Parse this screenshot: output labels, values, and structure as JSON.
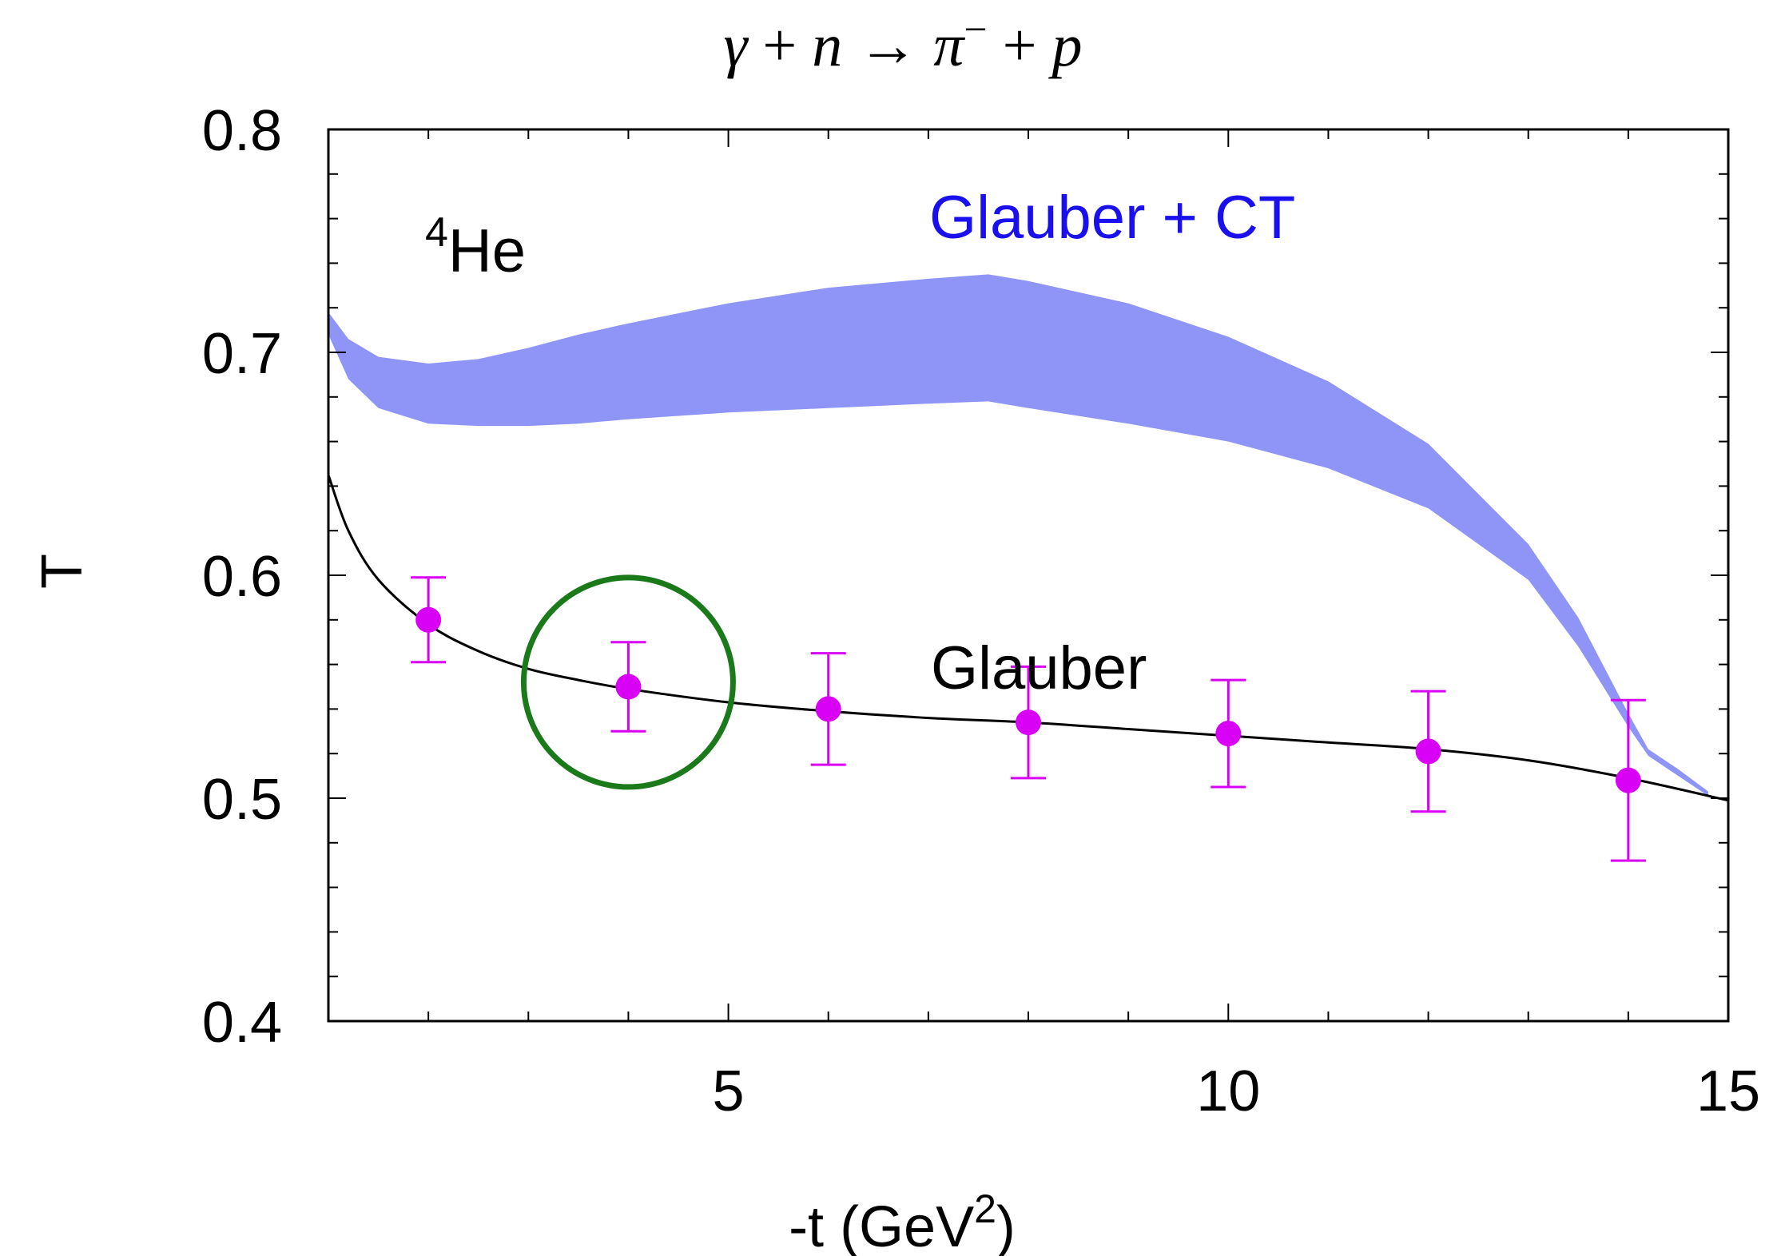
{
  "chart_data": {
    "type": "line",
    "title": {
      "parts": [
        "γ",
        " + ",
        "n",
        " → ",
        "π",
        "−",
        " + ",
        "p"
      ]
    },
    "xlabel": {
      "main": "-t (GeV",
      "sup": "2",
      "end": ")"
    },
    "ylabel": "T",
    "xlim": [
      1,
      15
    ],
    "ylim": [
      0.4,
      0.8
    ],
    "x_ticks": [
      5,
      10,
      15
    ],
    "x_tick_labels": [
      "5",
      "10",
      "15"
    ],
    "y_ticks": [
      0.4,
      0.5,
      0.6,
      0.7,
      0.8
    ],
    "y_tick_labels": [
      "0.4",
      "0.5",
      "0.6",
      "0.7",
      "0.8"
    ],
    "grid": false,
    "annotations": {
      "nucleus": {
        "sup": "4",
        "text": "He"
      },
      "band_label": "Glauber + CT",
      "curve_label": "Glauber"
    },
    "series": [
      {
        "name": "Glauber",
        "kind": "line",
        "color": "#000000",
        "x": [
          1.0,
          1.2,
          1.5,
          2.0,
          2.5,
          3.0,
          3.5,
          4.0,
          5.0,
          6.0,
          7.0,
          8.0,
          9.0,
          10.0,
          11.0,
          12.0,
          13.0,
          14.0,
          15.0
        ],
        "y": [
          0.645,
          0.62,
          0.598,
          0.578,
          0.566,
          0.558,
          0.553,
          0.549,
          0.543,
          0.539,
          0.536,
          0.534,
          0.531,
          0.528,
          0.525,
          0.522,
          0.517,
          0.509,
          0.499
        ]
      },
      {
        "name": "Glauber + CT",
        "kind": "band",
        "color": "#8f94f7",
        "x": [
          1.0,
          1.2,
          1.5,
          2.0,
          2.5,
          3.0,
          3.5,
          4.0,
          5.0,
          6.0,
          7.0,
          7.6,
          8.0,
          9.0,
          10.0,
          11.0,
          12.0,
          13.0,
          13.5,
          14.0,
          14.2,
          14.5,
          14.8
        ],
        "y_upper": [
          0.718,
          0.706,
          0.698,
          0.695,
          0.697,
          0.702,
          0.708,
          0.713,
          0.722,
          0.729,
          0.733,
          0.735,
          0.732,
          0.722,
          0.707,
          0.687,
          0.659,
          0.614,
          0.581,
          0.538,
          0.522,
          0.513,
          0.503
        ],
        "y_lower": [
          0.708,
          0.688,
          0.675,
          0.668,
          0.667,
          0.667,
          0.668,
          0.67,
          0.673,
          0.675,
          0.677,
          0.678,
          0.675,
          0.668,
          0.66,
          0.648,
          0.63,
          0.598,
          0.568,
          0.532,
          0.519,
          0.51,
          0.501
        ]
      },
      {
        "name": "data",
        "kind": "points",
        "color": "#d800f5",
        "x": [
          2,
          4,
          6,
          8,
          10,
          12,
          14
        ],
        "y": [
          0.58,
          0.55,
          0.54,
          0.534,
          0.529,
          0.521,
          0.508
        ],
        "err_up": [
          0.019,
          0.02,
          0.025,
          0.025,
          0.024,
          0.027,
          0.036
        ],
        "err_down": [
          0.019,
          0.02,
          0.025,
          0.025,
          0.024,
          0.027,
          0.036
        ]
      }
    ],
    "highlight": {
      "shape": "circle",
      "color": "#1a7a1a",
      "x": 4.0,
      "y": 0.552
    }
  }
}
